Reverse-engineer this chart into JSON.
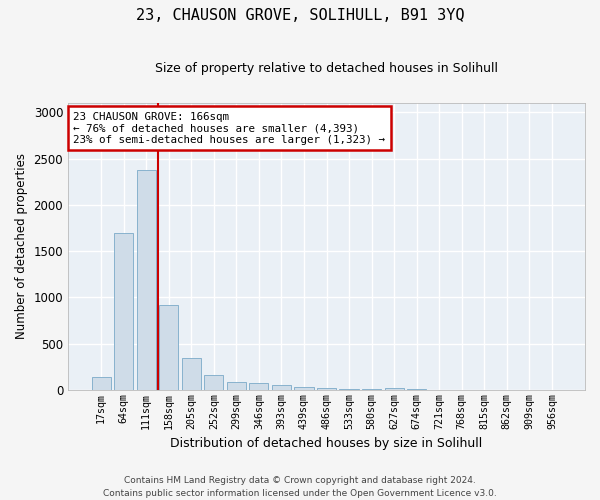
{
  "title": "23, CHAUSON GROVE, SOLIHULL, B91 3YQ",
  "subtitle": "Size of property relative to detached houses in Solihull",
  "xlabel": "Distribution of detached houses by size in Solihull",
  "ylabel": "Number of detached properties",
  "bar_color": "#cfdce8",
  "bar_edge_color": "#7aaac8",
  "background_color": "#eaf0f6",
  "grid_color": "#ffffff",
  "categories": [
    "17sqm",
    "64sqm",
    "111sqm",
    "158sqm",
    "205sqm",
    "252sqm",
    "299sqm",
    "346sqm",
    "393sqm",
    "439sqm",
    "486sqm",
    "533sqm",
    "580sqm",
    "627sqm",
    "674sqm",
    "721sqm",
    "768sqm",
    "815sqm",
    "862sqm",
    "909sqm",
    "956sqm"
  ],
  "values": [
    140,
    1700,
    2380,
    920,
    345,
    165,
    90,
    75,
    50,
    35,
    20,
    5,
    5,
    25,
    5,
    0,
    0,
    0,
    0,
    0,
    0
  ],
  "ylim": [
    0,
    3100
  ],
  "yticks": [
    0,
    500,
    1000,
    1500,
    2000,
    2500,
    3000
  ],
  "property_line_x": 2.52,
  "annotation_title": "23 CHAUSON GROVE: 166sqm",
  "annotation_line1": "← 76% of detached houses are smaller (4,393)",
  "annotation_line2": "23% of semi-detached houses are larger (1,323) →",
  "annotation_box_color": "#ffffff",
  "annotation_box_edge": "#cc0000",
  "line_color": "#cc0000",
  "footer_line1": "Contains HM Land Registry data © Crown copyright and database right 2024.",
  "footer_line2": "Contains public sector information licensed under the Open Government Licence v3.0."
}
